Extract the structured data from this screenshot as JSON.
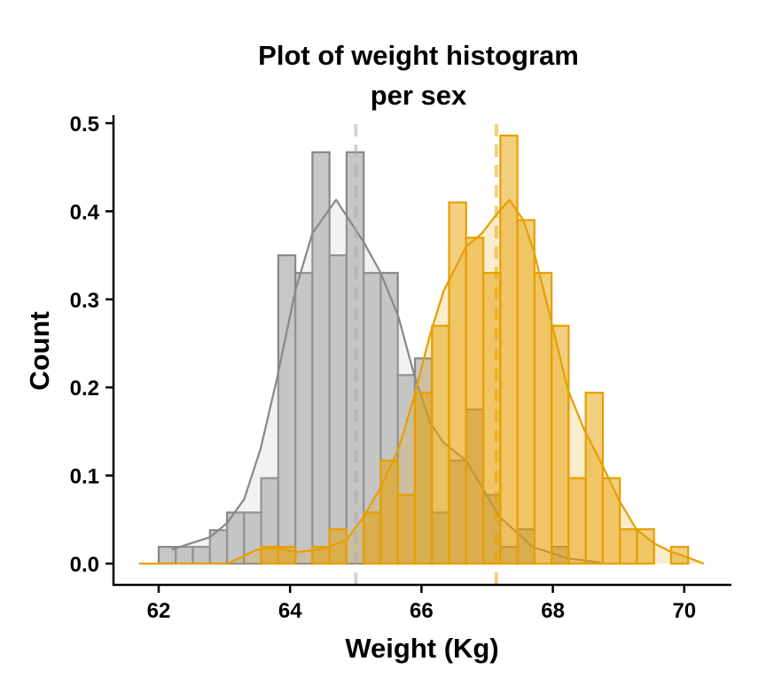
{
  "chart_data": {
    "type": "histogram",
    "title": [
      "Plot of weight histogram",
      "per sex"
    ],
    "xlabel": "Weight (Kg)",
    "ylabel": "Count",
    "xlim": [
      61.7,
      70.3
    ],
    "ylim": [
      0,
      0.5
    ],
    "x_ticks": [
      "62",
      "64",
      "66",
      "68",
      "70"
    ],
    "y_ticks": [
      "0.0",
      "0.1",
      "0.2",
      "0.3",
      "0.4",
      "0.5"
    ],
    "grid": false,
    "legend": "none",
    "bin_start": 62.0,
    "bin_width": 0.26,
    "series": [
      {
        "color": "#888888",
        "fill": "#bdbdbd",
        "mean": 65.0,
        "values": [
          0.019,
          0.019,
          0.019,
          0.038,
          0.058,
          0.058,
          0.097,
          0.35,
          0.33,
          0.467,
          0.35,
          0.467,
          0.33,
          0.33,
          0.214,
          0.233,
          0.058,
          0.117,
          0.175,
          0.078,
          0.019,
          0.039,
          0,
          0.019,
          0,
          0,
          0,
          0,
          0,
          0,
          0
        ],
        "density": [
          [
            62.2,
            0.016
          ],
          [
            62.78,
            0.03
          ],
          [
            63.04,
            0.046
          ],
          [
            63.3,
            0.073
          ],
          [
            63.55,
            0.13
          ],
          [
            63.8,
            0.21
          ],
          [
            64.08,
            0.31
          ],
          [
            64.34,
            0.375
          ],
          [
            64.7,
            0.413
          ],
          [
            65.12,
            0.365
          ],
          [
            65.38,
            0.33
          ],
          [
            65.65,
            0.28
          ],
          [
            65.89,
            0.214
          ],
          [
            66.13,
            0.16
          ],
          [
            66.34,
            0.137
          ],
          [
            66.68,
            0.117
          ],
          [
            66.92,
            0.087
          ],
          [
            67.19,
            0.053
          ],
          [
            67.69,
            0.019
          ],
          [
            68.23,
            0.006
          ],
          [
            68.73,
            0.001
          ]
        ]
      },
      {
        "color": "#E69F00",
        "fill": "#E69F00",
        "mean": 67.14,
        "values": [
          0,
          0,
          0,
          0,
          0,
          0,
          0.019,
          0.019,
          0,
          0.019,
          0.039,
          0,
          0.058,
          0.117,
          0.078,
          0.194,
          0.27,
          0.41,
          0.37,
          0.33,
          0.486,
          0.39,
          0.33,
          0.27,
          0.097,
          0.194,
          0.097,
          0.039,
          0.039,
          0,
          0.019
        ],
        "density": [
          [
            61.7,
            0
          ],
          [
            63.05,
            0.0
          ],
          [
            63.5,
            0.016
          ],
          [
            63.8,
            0.018
          ],
          [
            64.1,
            0.013
          ],
          [
            64.45,
            0.016
          ],
          [
            64.85,
            0.026
          ],
          [
            65.12,
            0.053
          ],
          [
            65.38,
            0.087
          ],
          [
            65.65,
            0.13
          ],
          [
            65.89,
            0.19
          ],
          [
            66.13,
            0.26
          ],
          [
            66.34,
            0.31
          ],
          [
            66.68,
            0.36
          ],
          [
            66.92,
            0.375
          ],
          [
            67.18,
            0.4
          ],
          [
            67.34,
            0.413
          ],
          [
            67.55,
            0.39
          ],
          [
            67.71,
            0.355
          ],
          [
            67.96,
            0.28
          ],
          [
            68.23,
            0.197
          ],
          [
            68.49,
            0.15
          ],
          [
            68.74,
            0.114
          ],
          [
            69.0,
            0.073
          ],
          [
            69.27,
            0.039
          ],
          [
            69.54,
            0.023
          ],
          [
            69.78,
            0.014
          ],
          [
            69.98,
            0.009
          ],
          [
            70.3,
            0
          ]
        ]
      }
    ]
  }
}
